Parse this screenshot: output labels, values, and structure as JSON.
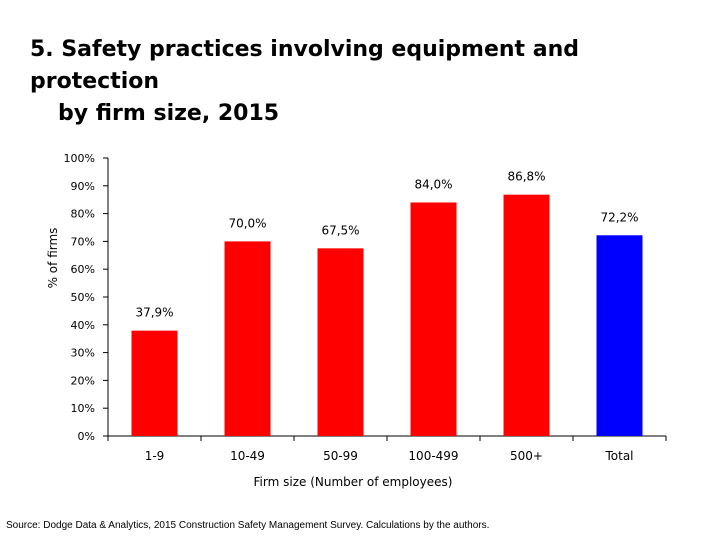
{
  "title_line1": "5. Safety practices involving equipment and protection",
  "title_line2": "by firm size, 2015",
  "source": "Source: Dodge Data & Analytics, 2015 Construction Safety Management Survey. Calculations by the authors.",
  "colors": {
    "bar": "#ff0000",
    "highlight": "#0000ff",
    "axis": "#000000"
  },
  "chart_data": {
    "type": "bar",
    "categories": [
      "1-9",
      "10-49",
      "50-99",
      "100-499",
      "500+",
      "Total"
    ],
    "values": [
      37.9,
      70.0,
      67.5,
      84.0,
      86.8,
      72.2
    ],
    "data_labels": [
      "37,9%",
      "70,0%",
      "67,5%",
      "84,0%",
      "86,8%",
      "72,2%"
    ],
    "bar_colors": [
      "#ff0000",
      "#ff0000",
      "#ff0000",
      "#ff0000",
      "#ff0000",
      "#0000ff"
    ],
    "ylim": [
      0,
      100
    ],
    "yticks": [
      0,
      10,
      20,
      30,
      40,
      50,
      60,
      70,
      80,
      90,
      100
    ],
    "ytick_labels": [
      "0%",
      "10%",
      "20%",
      "30%",
      "40%",
      "50%",
      "60%",
      "70%",
      "80%",
      "90%",
      "100%"
    ],
    "xlabel": "Firm size (Number of employees)",
    "ylabel": "% of firms",
    "grid": false,
    "legend": "none"
  }
}
